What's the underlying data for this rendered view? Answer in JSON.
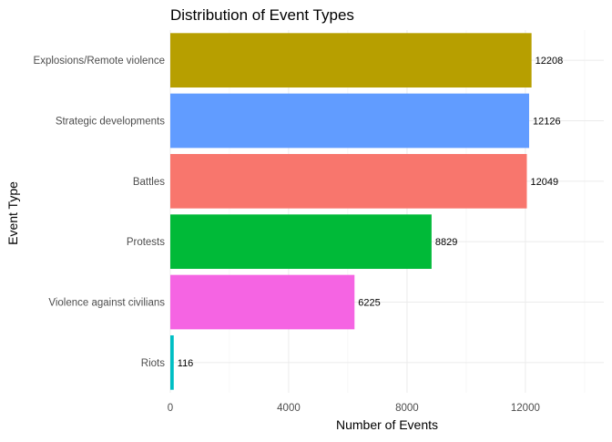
{
  "chart_data": {
    "type": "bar",
    "orientation": "horizontal",
    "title": "Distribution of Event Types",
    "xlabel": "Number of Events",
    "ylabel": "Event Type",
    "categories": [
      "Explosions/Remote violence",
      "Strategic developments",
      "Battles",
      "Protests",
      "Violence against civilians",
      "Riots"
    ],
    "values": [
      12208,
      12126,
      12049,
      8829,
      6225,
      116
    ],
    "data_labels": [
      "12208",
      "12126",
      "12049",
      "8829",
      "6225",
      "116"
    ],
    "colors": [
      "#B79F00",
      "#619CFF",
      "#F8766D",
      "#00BA38",
      "#F564E3",
      "#00BFC4"
    ],
    "x_ticks": [
      0,
      4000,
      8000,
      12000
    ],
    "x_tick_labels": [
      "0",
      "4000",
      "8000",
      "12000"
    ],
    "xlim": [
      0,
      14650
    ],
    "grid": true,
    "legend": "none"
  }
}
